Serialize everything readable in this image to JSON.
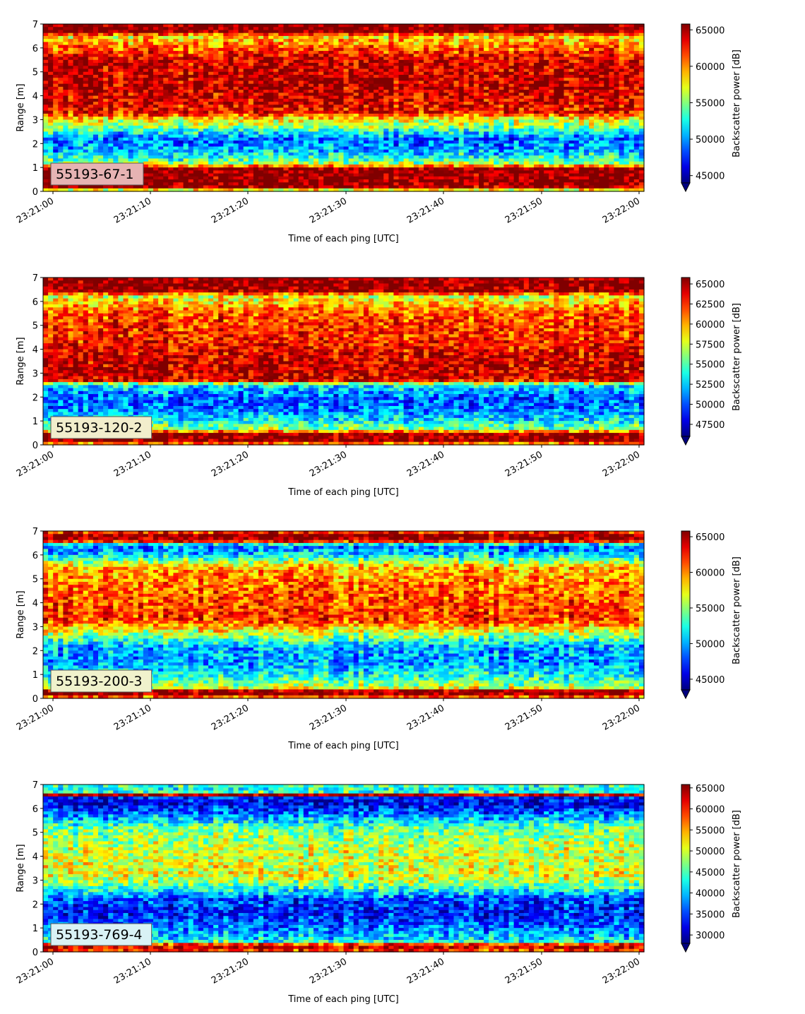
{
  "chart_data": [
    {
      "type": "heatmap",
      "label_box": "55193-67-1",
      "label_box_color": "#e6b3b3",
      "xlabel": "Time of each ping [UTC]",
      "ylabel": "Range [m]",
      "ylim": [
        0,
        7
      ],
      "yticks": [
        "0",
        "1",
        "2",
        "3",
        "4",
        "5",
        "6",
        "7"
      ],
      "xticks": [
        "23:21:00",
        "23:21:10",
        "23:21:20",
        "23:21:30",
        "23:21:40",
        "23:21:50",
        "23:22:00"
      ],
      "colorbar_label": "Backscatter power [dB]",
      "colorbar_range": [
        44000,
        65800
      ],
      "colorbar_ticks": [
        45000,
        50000,
        55000,
        60000,
        65000
      ],
      "colorbar_tick_labels": [
        "45000",
        "50000",
        "55000",
        "60000",
        "65000"
      ],
      "colormap": "jet",
      "profile": [
        {
          "range": 0.0,
          "value": 54000
        },
        {
          "range": 0.2,
          "value": 65800
        },
        {
          "range": 1.0,
          "value": 65800
        },
        {
          "range": 1.1,
          "value": 57000
        },
        {
          "range": 1.3,
          "value": 54000
        },
        {
          "range": 1.7,
          "value": 50500
        },
        {
          "range": 2.2,
          "value": 49000
        },
        {
          "range": 2.7,
          "value": 55000
        },
        {
          "range": 3.0,
          "value": 57500
        },
        {
          "range": 3.3,
          "value": 63000
        },
        {
          "range": 4.5,
          "value": 64500
        },
        {
          "range": 5.5,
          "value": 64000
        },
        {
          "range": 6.0,
          "value": 61000
        },
        {
          "range": 6.5,
          "value": 58000
        },
        {
          "range": 6.65,
          "value": 65800
        },
        {
          "range": 7.0,
          "value": 65800
        }
      ]
    },
    {
      "type": "heatmap",
      "label_box": "55193-120-2",
      "label_box_color": "#f2eecc",
      "xlabel": "Time of each ping [UTC]",
      "ylabel": "Range [m]",
      "ylim": [
        0,
        7
      ],
      "yticks": [
        "0",
        "1",
        "2",
        "3",
        "4",
        "5",
        "6",
        "7"
      ],
      "xticks": [
        "23:21:00",
        "23:21:10",
        "23:21:20",
        "23:21:30",
        "23:21:40",
        "23:21:50",
        "23:22:00"
      ],
      "colorbar_label": "Backscatter power [dB]",
      "colorbar_range": [
        46000,
        65800
      ],
      "colorbar_ticks": [
        47500,
        50000,
        52500,
        55000,
        57500,
        60000,
        62500,
        65000
      ],
      "colorbar_tick_labels": [
        "47500",
        "50000",
        "52500",
        "55000",
        "57500",
        "60000",
        "62500",
        "65000"
      ],
      "colormap": "jet",
      "profile": [
        {
          "range": 0.0,
          "value": 54000
        },
        {
          "range": 0.1,
          "value": 65800
        },
        {
          "range": 0.5,
          "value": 65800
        },
        {
          "range": 0.6,
          "value": 57000
        },
        {
          "range": 1.0,
          "value": 53500
        },
        {
          "range": 1.5,
          "value": 51000
        },
        {
          "range": 2.0,
          "value": 50500
        },
        {
          "range": 2.5,
          "value": 53500
        },
        {
          "range": 2.7,
          "value": 64500
        },
        {
          "range": 3.5,
          "value": 64500
        },
        {
          "range": 4.5,
          "value": 63000
        },
        {
          "range": 5.5,
          "value": 62000
        },
        {
          "range": 6.2,
          "value": 58000
        },
        {
          "range": 6.45,
          "value": 65800
        },
        {
          "range": 7.0,
          "value": 65800
        }
      ]
    },
    {
      "type": "heatmap",
      "label_box": "55193-200-3",
      "label_box_color": "#f0f2cc",
      "xlabel": "Time of each ping [UTC]",
      "ylabel": "Range [m]",
      "ylim": [
        0,
        7
      ],
      "yticks": [
        "0",
        "1",
        "2",
        "3",
        "4",
        "5",
        "6",
        "7"
      ],
      "xticks": [
        "23:21:00",
        "23:21:10",
        "23:21:20",
        "23:21:30",
        "23:21:40",
        "23:21:50",
        "23:22:00"
      ],
      "colorbar_label": "Backscatter power [dB]",
      "colorbar_range": [
        43500,
        65800
      ],
      "colorbar_ticks": [
        45000,
        50000,
        55000,
        60000,
        65000
      ],
      "colorbar_tick_labels": [
        "45000",
        "50000",
        "55000",
        "60000",
        "65000"
      ],
      "colormap": "jet",
      "profile": [
        {
          "range": 0.0,
          "value": 54000
        },
        {
          "range": 0.1,
          "value": 65800
        },
        {
          "range": 0.3,
          "value": 65800
        },
        {
          "range": 0.45,
          "value": 56000
        },
        {
          "range": 1.0,
          "value": 52000
        },
        {
          "range": 1.6,
          "value": 49500
        },
        {
          "range": 2.2,
          "value": 50500
        },
        {
          "range": 2.8,
          "value": 57000
        },
        {
          "range": 3.3,
          "value": 62000
        },
        {
          "range": 4.5,
          "value": 61000
        },
        {
          "range": 5.5,
          "value": 59000
        },
        {
          "range": 6.0,
          "value": 51000
        },
        {
          "range": 6.4,
          "value": 48500
        },
        {
          "range": 6.6,
          "value": 65800
        },
        {
          "range": 6.85,
          "value": 65800
        },
        {
          "range": 7.0,
          "value": 60000
        }
      ]
    },
    {
      "type": "heatmap",
      "label_box": "55193-769-4",
      "label_box_color": "#d9f2f5",
      "xlabel": "Time of each ping [UTC]",
      "ylabel": "Range [m]",
      "ylim": [
        0,
        7
      ],
      "yticks": [
        "0",
        "1",
        "2",
        "3",
        "4",
        "5",
        "6",
        "7"
      ],
      "xticks": [
        "23:21:00",
        "23:21:10",
        "23:21:20",
        "23:21:30",
        "23:21:40",
        "23:21:50",
        "23:22:00"
      ],
      "colorbar_label": "Backscatter power [dB]",
      "colorbar_range": [
        28000,
        65800
      ],
      "colorbar_ticks": [
        30000,
        35000,
        40000,
        45000,
        50000,
        55000,
        60000,
        65000
      ],
      "colorbar_tick_labels": [
        "30000",
        "35000",
        "40000",
        "45000",
        "50000",
        "55000",
        "60000",
        "65000"
      ],
      "colormap": "jet",
      "profile": [
        {
          "range": 0.0,
          "value": 50000
        },
        {
          "range": 0.1,
          "value": 65800
        },
        {
          "range": 0.3,
          "value": 60000
        },
        {
          "range": 0.45,
          "value": 42000
        },
        {
          "range": 1.0,
          "value": 37000
        },
        {
          "range": 1.6,
          "value": 33500
        },
        {
          "range": 2.2,
          "value": 35500
        },
        {
          "range": 2.7,
          "value": 45000
        },
        {
          "range": 3.2,
          "value": 51000
        },
        {
          "range": 4.2,
          "value": 50000
        },
        {
          "range": 5.2,
          "value": 46000
        },
        {
          "range": 5.7,
          "value": 38000
        },
        {
          "range": 6.2,
          "value": 31500
        },
        {
          "range": 6.45,
          "value": 34000
        },
        {
          "range": 6.55,
          "value": 65800
        },
        {
          "range": 6.7,
          "value": 42000
        },
        {
          "range": 7.0,
          "value": 45000
        }
      ]
    }
  ]
}
